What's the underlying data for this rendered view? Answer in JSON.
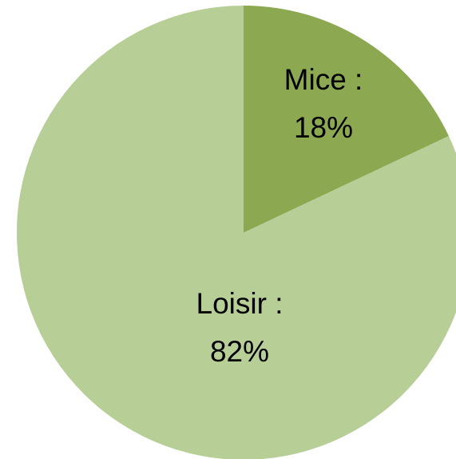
{
  "chart_data": {
    "type": "pie",
    "title": "",
    "slices": [
      {
        "label": "Mice :",
        "value_label": "18%",
        "value": 18,
        "color": "#8CA850"
      },
      {
        "label": "Loisir :",
        "value_label": "82%",
        "value": 82,
        "color": "#B7CF96"
      }
    ],
    "start": "12 o'clock",
    "direction": "clockwise",
    "legend": "none",
    "data_labels": "inside"
  }
}
